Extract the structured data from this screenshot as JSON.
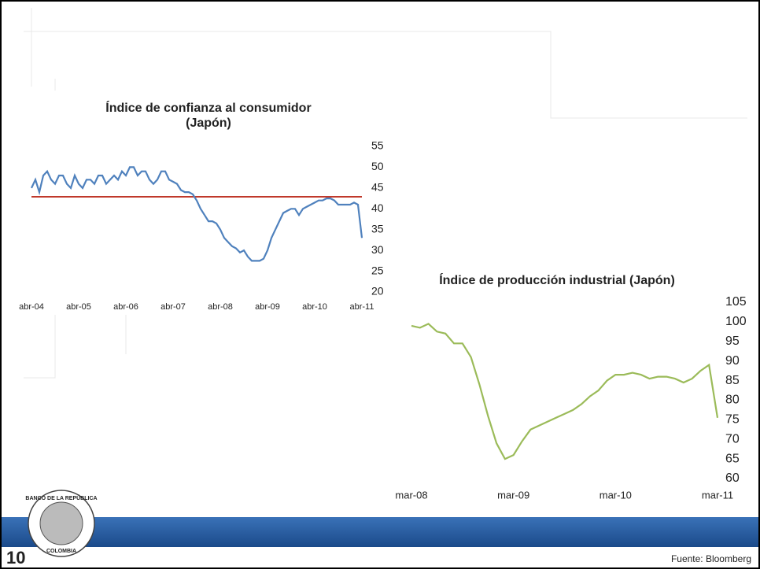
{
  "chart_data": [
    {
      "type": "line",
      "title": [
        "Índice de confianza al consumidor",
        "(Japón)"
      ],
      "categories": [
        "abr-04",
        null,
        null,
        null,
        null,
        null,
        null,
        null,
        null,
        null,
        null,
        null,
        "abr-05",
        null,
        null,
        null,
        null,
        null,
        null,
        null,
        null,
        null,
        null,
        null,
        "abr-06",
        null,
        null,
        null,
        null,
        null,
        null,
        null,
        null,
        null,
        null,
        null,
        "abr-07",
        null,
        null,
        null,
        null,
        null,
        null,
        null,
        null,
        null,
        null,
        null,
        "abr-08",
        null,
        null,
        null,
        null,
        null,
        null,
        null,
        null,
        null,
        null,
        null,
        "abr-09",
        null,
        null,
        null,
        null,
        null,
        null,
        null,
        null,
        null,
        null,
        null,
        "abr-10",
        null,
        null,
        null,
        null,
        null,
        null,
        null,
        null,
        null,
        null,
        null,
        "abr-11"
      ],
      "values": [
        45,
        47,
        44,
        48,
        49,
        47,
        46,
        48,
        48,
        46,
        45,
        48,
        46,
        45,
        47,
        47,
        46,
        48,
        48,
        46,
        47,
        48,
        47,
        49,
        48,
        50,
        50,
        48,
        49,
        49,
        47,
        46,
        47,
        49,
        49,
        47,
        46.5,
        46,
        44.5,
        44,
        44,
        43.5,
        42,
        40,
        38.5,
        37,
        37,
        36.5,
        35,
        33,
        32,
        31,
        30.5,
        29.5,
        30,
        28.5,
        27.5,
        27.5,
        27.5,
        28,
        30,
        33,
        35,
        37,
        39,
        39.5,
        40,
        40,
        38.5,
        40,
        40.5,
        41,
        41.5,
        42,
        42,
        42.5,
        42.5,
        42,
        41,
        41,
        41,
        41,
        41.5,
        41,
        33
      ],
      "color": "#4f81bd",
      "hline": {
        "value": 42.9,
        "color": "#c0392b"
      },
      "ylim": [
        20,
        55
      ],
      "yticks": [
        20,
        25,
        30,
        35,
        40,
        45,
        50,
        55
      ]
    },
    {
      "type": "line",
      "title": [
        "Índice de producción industrial (Japón)"
      ],
      "categories": [
        "mar-08",
        null,
        null,
        null,
        null,
        null,
        null,
        null,
        null,
        null,
        null,
        null,
        "mar-09",
        null,
        null,
        null,
        null,
        null,
        null,
        null,
        null,
        null,
        null,
        null,
        "mar-10",
        null,
        null,
        null,
        null,
        null,
        null,
        null,
        null,
        null,
        null,
        null,
        "mar-11"
      ],
      "values": [
        99,
        98.5,
        99.5,
        97.5,
        97,
        94.5,
        94.5,
        91,
        84,
        76,
        69,
        65,
        66,
        69.5,
        72.5,
        73.5,
        74.5,
        75.5,
        76.5,
        77.5,
        79,
        81,
        82.5,
        85,
        86.5,
        86.5,
        87,
        86.5,
        85.5,
        86,
        86,
        85.5,
        84.5,
        85.5,
        87.5,
        89,
        75.5
      ],
      "color": "#9bbb59",
      "ylim": [
        60,
        105
      ],
      "yticks": [
        60,
        65,
        70,
        75,
        80,
        85,
        90,
        95,
        100,
        105
      ]
    }
  ],
  "footer": {
    "page": "10",
    "source": "Fuente: Bloomberg",
    "logo": [
      "BANCO DE LA REPÚBLICA",
      "COLOMBIA"
    ]
  }
}
